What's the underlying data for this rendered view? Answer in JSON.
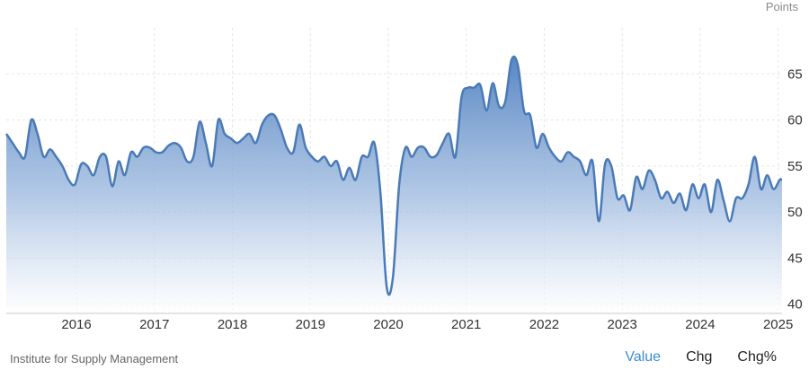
{
  "unit_label": "Points",
  "source": "Institute for Supply Management",
  "tabs": [
    {
      "label": "Value",
      "active": true
    },
    {
      "label": "Chg",
      "active": false
    },
    {
      "label": "Chg%",
      "active": false
    }
  ],
  "colors": {
    "line": "#4a7ab7",
    "fill_top": "#5a8ac6",
    "fill_bottom": "#ffffff",
    "grid": "#e6e6e6",
    "active_tab": "#3a8ed2"
  },
  "chart_data": {
    "type": "area",
    "title": "",
    "xlabel": "",
    "ylabel": "",
    "grid": true,
    "ylim": [
      39,
      70
    ],
    "yticks": [
      40,
      45,
      50,
      55,
      60,
      65
    ],
    "xticks": [
      {
        "label": "2016",
        "x": 2016.0
      },
      {
        "label": "2017",
        "x": 2017.0
      },
      {
        "label": "2018",
        "x": 2018.0
      },
      {
        "label": "2019",
        "x": 2019.0
      },
      {
        "label": "2020",
        "x": 2020.0
      },
      {
        "label": "2021",
        "x": 2021.0
      },
      {
        "label": "2022",
        "x": 2022.0
      },
      {
        "label": "2023",
        "x": 2023.0
      },
      {
        "label": "2024",
        "x": 2024.0
      },
      {
        "label": "2025",
        "x": 2025.0
      }
    ],
    "xlim": [
      2015.1,
      2025.05
    ],
    "series": [
      {
        "x": [
          2015.1,
          2015.18,
          2015.26,
          2015.34,
          2015.42,
          2015.5,
          2015.58,
          2015.66,
          2015.74,
          2015.82,
          2015.9,
          2015.98,
          2016.06,
          2016.14,
          2016.22,
          2016.3,
          2016.38,
          2016.46,
          2016.54,
          2016.62,
          2016.7,
          2016.78,
          2016.86,
          2016.94,
          2017.02,
          2017.1,
          2017.18,
          2017.26,
          2017.34,
          2017.42,
          2017.5,
          2017.58,
          2017.66,
          2017.74,
          2017.82,
          2017.9,
          2017.98,
          2018.06,
          2018.14,
          2018.22,
          2018.3,
          2018.38,
          2018.46,
          2018.54,
          2018.62,
          2018.7,
          2018.78,
          2018.86,
          2018.94,
          2019.02,
          2019.1,
          2019.18,
          2019.26,
          2019.34,
          2019.42,
          2019.5,
          2019.58,
          2019.66,
          2019.74,
          2019.82,
          2019.9,
          2019.98,
          2020.06,
          2020.14,
          2020.22,
          2020.3,
          2020.38,
          2020.46,
          2020.54,
          2020.62,
          2020.7,
          2020.78,
          2020.86,
          2020.94,
          2021.02,
          2021.1,
          2021.18,
          2021.26,
          2021.34,
          2021.42,
          2021.5,
          2021.58,
          2021.66,
          2021.74,
          2021.82,
          2021.9,
          2021.98,
          2022.06,
          2022.14,
          2022.22,
          2022.3,
          2022.38,
          2022.46,
          2022.54,
          2022.62,
          2022.7,
          2022.78,
          2022.86,
          2022.94,
          2023.02,
          2023.1,
          2023.18,
          2023.26,
          2023.34,
          2023.42,
          2023.5,
          2023.58,
          2023.66,
          2023.74,
          2023.82,
          2023.9,
          2023.98,
          2024.06,
          2024.14,
          2024.22,
          2024.3,
          2024.38,
          2024.46,
          2024.54,
          2024.62,
          2024.7,
          2024.78,
          2024.86,
          2024.94,
          2025.02,
          2025.05
        ],
        "values": [
          58.5,
          57.5,
          56.5,
          56.0,
          60.0,
          58.5,
          56.0,
          56.8,
          56.0,
          55.0,
          53.5,
          53.0,
          55.2,
          55.0,
          54.0,
          56.0,
          56.0,
          52.8,
          55.5,
          54.0,
          56.5,
          56.0,
          57.0,
          57.0,
          56.5,
          56.5,
          57.2,
          57.5,
          57.0,
          55.5,
          56.0,
          59.8,
          57.5,
          55.0,
          60.0,
          58.5,
          58.0,
          57.5,
          58.0,
          58.5,
          57.5,
          59.5,
          60.5,
          60.5,
          59.0,
          57.0,
          56.5,
          59.5,
          57.0,
          56.0,
          55.5,
          56.0,
          55.0,
          55.5,
          53.5,
          54.8,
          53.5,
          56.0,
          56.0,
          57.5,
          52.0,
          41.8,
          43.0,
          53.0,
          57.0,
          56.0,
          57.0,
          57.0,
          56.0,
          56.2,
          57.5,
          58.5,
          56.0,
          62.5,
          63.5,
          63.5,
          63.8,
          61.0,
          64.0,
          61.5,
          62.0,
          66.5,
          66.0,
          61.0,
          60.5,
          57.0,
          58.5,
          57.0,
          56.0,
          55.5,
          56.5,
          56.0,
          55.5,
          54.0,
          55.5,
          49.0,
          55.2,
          55.0,
          51.5,
          51.8,
          50.2,
          53.8,
          52.5,
          54.5,
          53.5,
          51.5,
          52.2,
          51.0,
          52.0,
          50.2,
          53.0,
          51.5,
          53.0,
          50.0,
          53.5,
          51.3,
          49.0,
          51.5,
          51.5,
          53.0,
          56.0,
          52.5,
          54.0,
          52.5,
          53.5,
          53.5
        ]
      }
    ]
  }
}
